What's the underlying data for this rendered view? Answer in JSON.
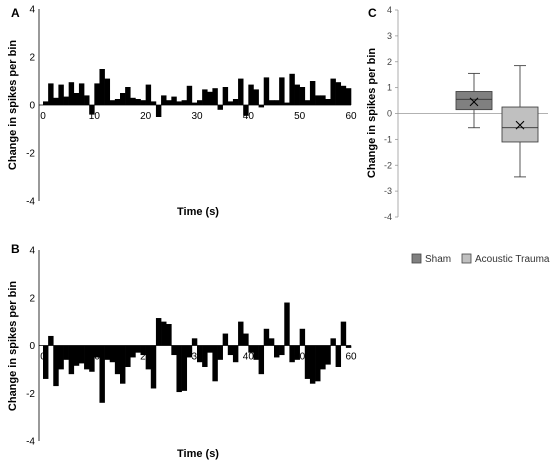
{
  "chart_data": [
    {
      "panel": "A",
      "type": "bar",
      "xlabel": "Time (s)",
      "ylabel": "Change in spikes per bin",
      "xlim": [
        0,
        60
      ],
      "ylim": [
        -4,
        4
      ],
      "xticks": [
        0,
        10,
        20,
        30,
        40,
        50,
        60
      ],
      "yticks": [
        -4,
        -2,
        0,
        2,
        4
      ],
      "x": [
        0,
        1,
        2,
        3,
        4,
        5,
        6,
        7,
        8,
        9,
        10,
        11,
        12,
        13,
        14,
        15,
        16,
        17,
        18,
        19,
        20,
        21,
        22,
        23,
        24,
        25,
        26,
        27,
        28,
        29,
        30,
        31,
        32,
        33,
        34,
        35,
        36,
        37,
        38,
        39,
        40,
        41,
        42,
        43,
        44,
        45,
        46,
        47,
        48,
        49,
        50,
        51,
        52,
        53,
        54,
        55,
        56,
        57,
        58,
        59
      ],
      "values": [
        0.15,
        0.9,
        0.3,
        0.85,
        0.35,
        0.95,
        0.5,
        0.9,
        0.4,
        -0.4,
        0.9,
        1.5,
        1.1,
        0.2,
        0.25,
        0.5,
        0.75,
        0.3,
        0.25,
        0.2,
        0.85,
        0.15,
        -0.5,
        0.4,
        0.2,
        0.35,
        0.15,
        0.2,
        0.8,
        0.1,
        0.2,
        0.65,
        0.55,
        0.7,
        -0.2,
        0.75,
        0.15,
        0.25,
        1.1,
        -0.45,
        0.85,
        0.65,
        -0.1,
        1.15,
        0.2,
        0.2,
        1.15,
        0.1,
        1.3,
        0.85,
        0.75,
        0.2,
        1.0,
        0.4,
        0.4,
        0.25,
        1.1,
        0.95,
        0.8,
        0.7
      ]
    },
    {
      "panel": "B",
      "type": "bar",
      "xlabel": "Time (s)",
      "ylabel": "Change in spikes per bin",
      "xlim": [
        0,
        60
      ],
      "ylim": [
        -4,
        4
      ],
      "xticks": [
        0,
        10,
        20,
        30,
        40,
        50,
        60
      ],
      "yticks": [
        -4,
        -2,
        0,
        2,
        4
      ],
      "x": [
        0,
        1,
        2,
        3,
        4,
        5,
        6,
        7,
        8,
        9,
        10,
        11,
        12,
        13,
        14,
        15,
        16,
        17,
        18,
        19,
        20,
        21,
        22,
        23,
        24,
        25,
        26,
        27,
        28,
        29,
        30,
        31,
        32,
        33,
        34,
        35,
        36,
        37,
        38,
        39,
        40,
        41,
        42,
        43,
        44,
        45,
        46,
        47,
        48,
        49,
        50,
        51,
        52,
        53,
        54,
        55,
        56,
        57,
        58,
        59
      ],
      "values": [
        -1.4,
        0.4,
        -1.7,
        -1.0,
        -0.6,
        -1.2,
        -0.85,
        -0.75,
        -1.0,
        -1.1,
        -0.5,
        -2.4,
        -0.6,
        -0.7,
        -1.2,
        -1.6,
        -0.9,
        -0.5,
        -0.3,
        -0.4,
        -1.0,
        -1.8,
        1.15,
        1.0,
        0.9,
        -0.4,
        -1.95,
        -1.9,
        -0.5,
        0.3,
        -0.7,
        -0.9,
        -0.3,
        -1.5,
        -0.6,
        0.5,
        -0.4,
        -0.7,
        1.0,
        0.5,
        -0.3,
        -0.6,
        -1.2,
        0.7,
        0.3,
        -0.5,
        -0.4,
        1.8,
        -0.7,
        -0.6,
        0.7,
        -1.4,
        -1.6,
        -1.5,
        -1.0,
        -0.8,
        0.3,
        -0.9,
        1.0,
        -0.1
      ]
    },
    {
      "panel": "C",
      "type": "box",
      "ylabel": "Change in spikes per bin",
      "ylim": [
        -4,
        4
      ],
      "yticks": [
        -4,
        -3,
        -2,
        -1,
        0,
        1,
        2,
        3,
        4
      ],
      "series": [
        {
          "name": "Sham",
          "color": "#808080",
          "min": -0.55,
          "q1": 0.15,
          "median": 0.55,
          "q3": 0.85,
          "max": 1.55,
          "mean": 0.45
        },
        {
          "name": "Acoustic Trauma",
          "color": "#c0c0c0",
          "min": -2.45,
          "q1": -1.1,
          "median": -0.55,
          "q3": 0.25,
          "max": 1.85,
          "mean": -0.45
        }
      ],
      "legend_position": "bottom"
    }
  ]
}
